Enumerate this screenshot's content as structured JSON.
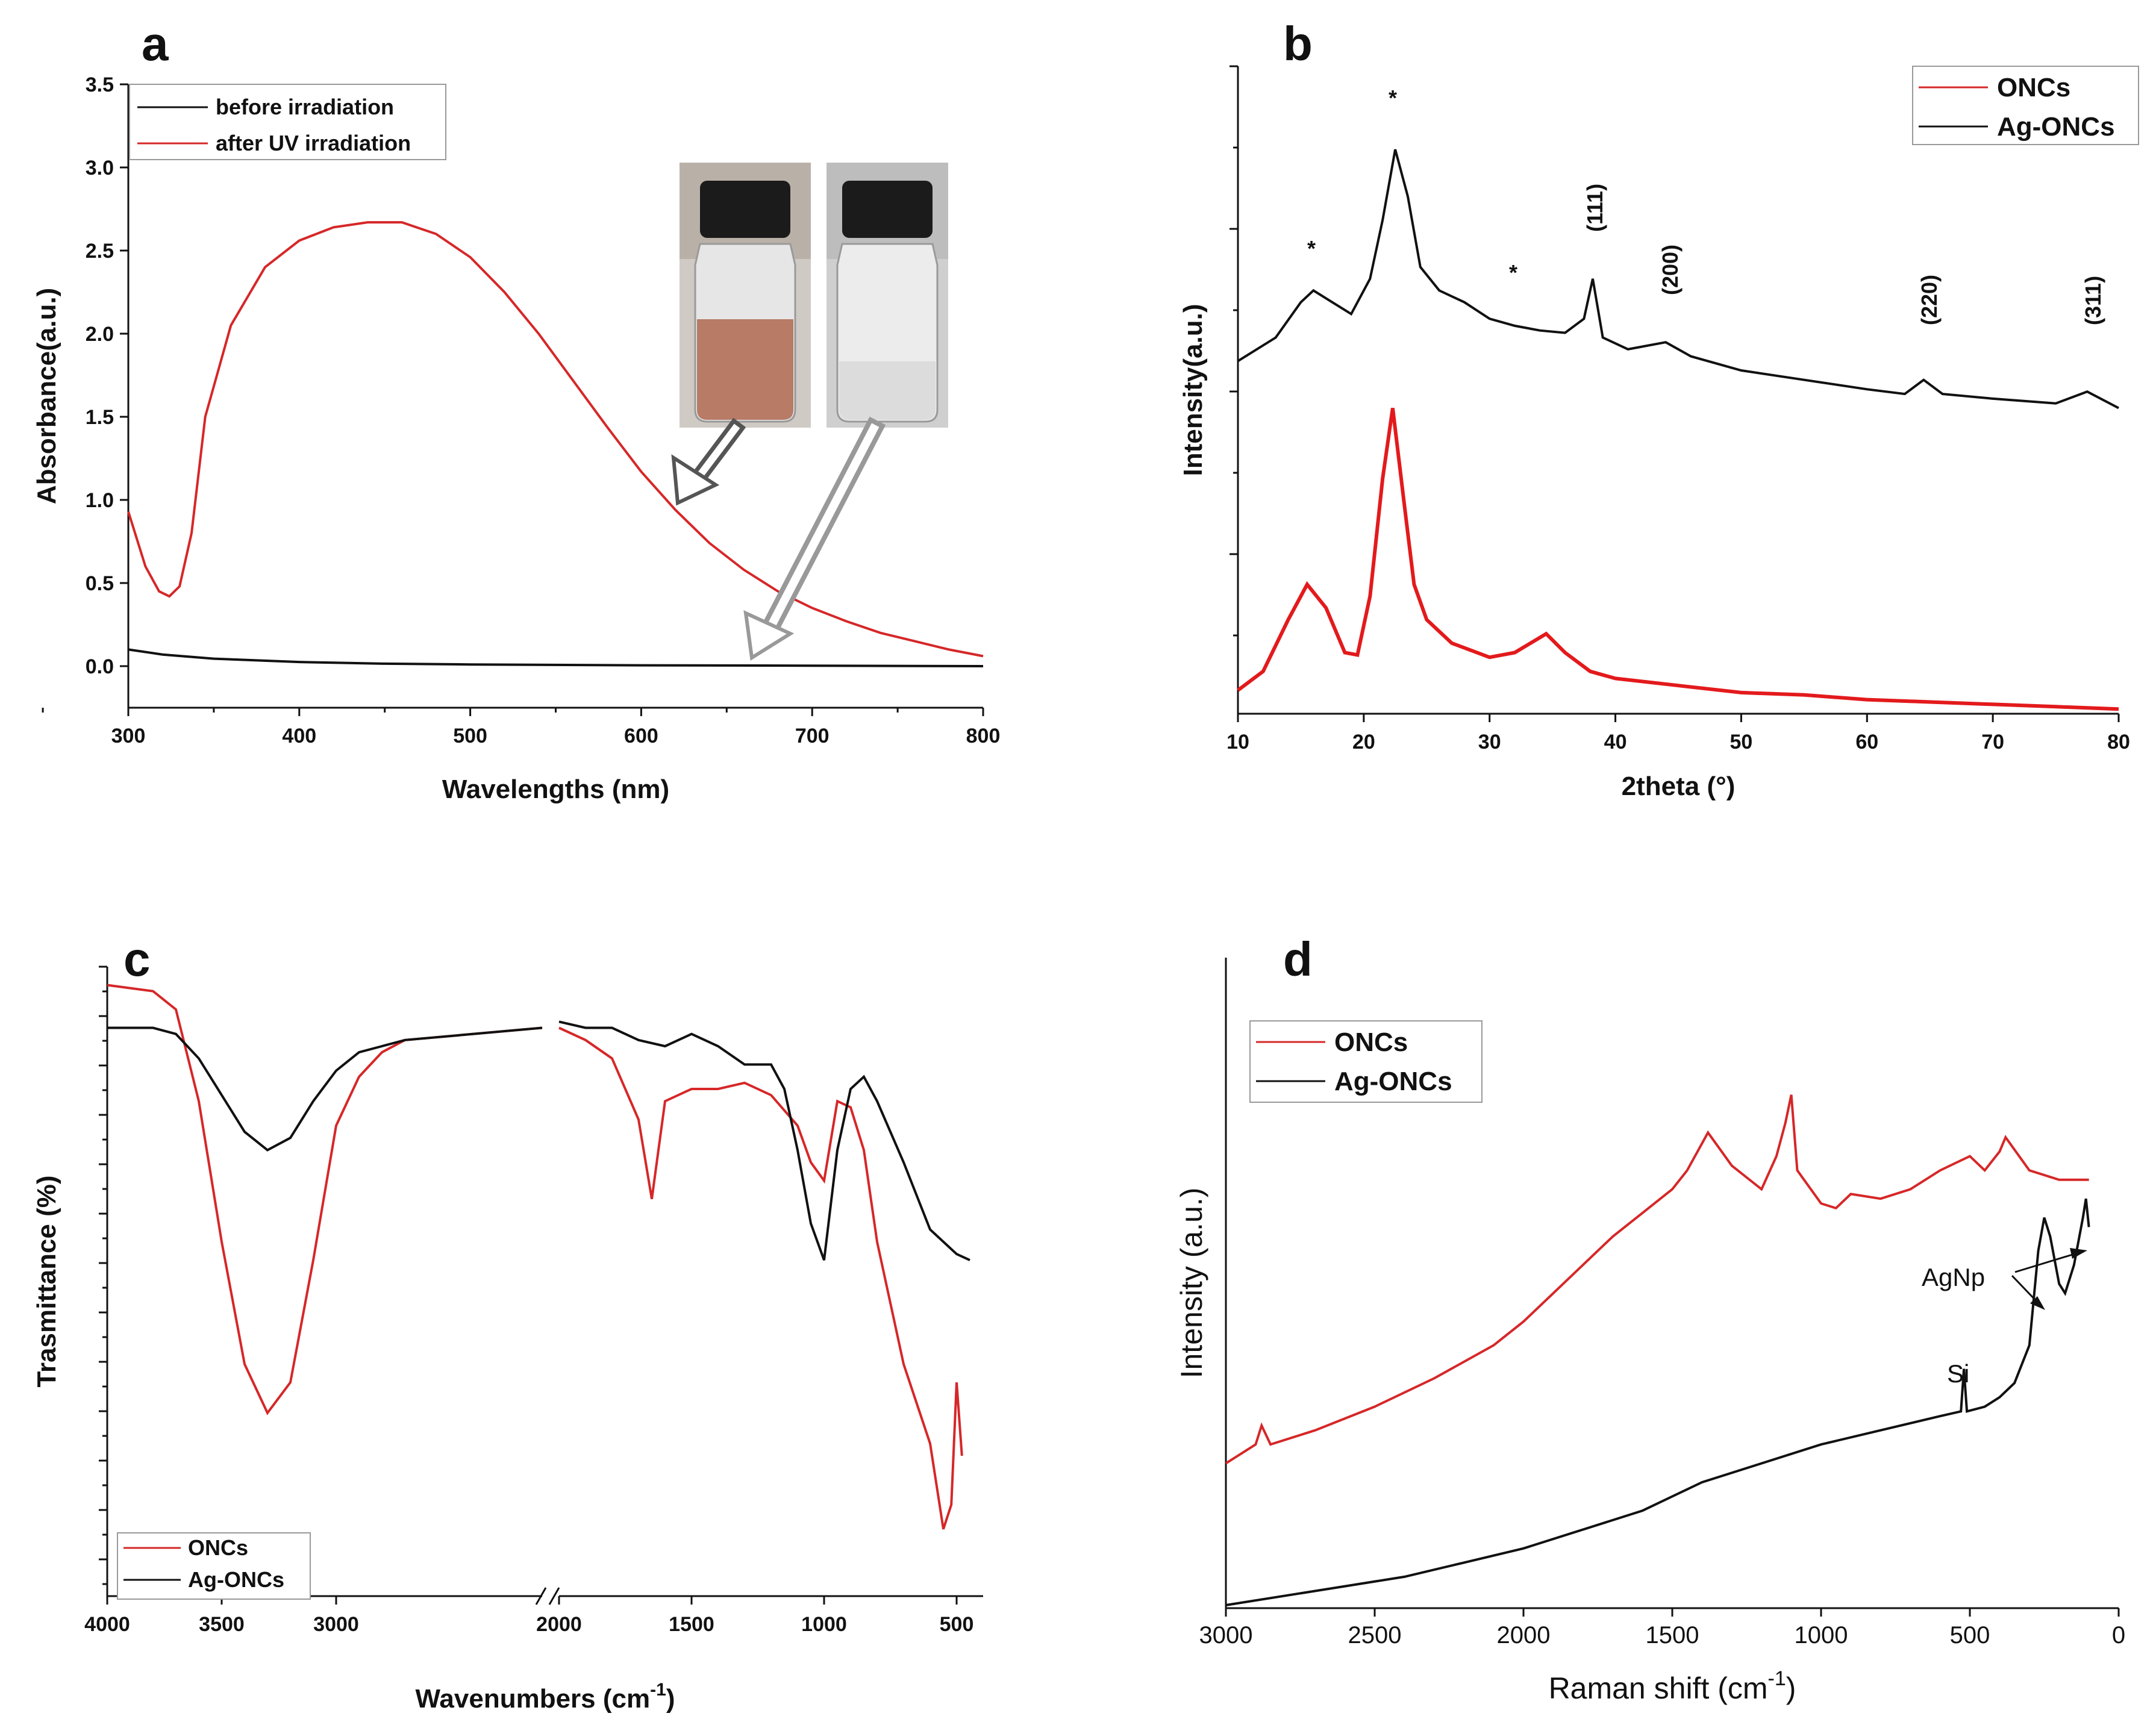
{
  "chart_data": [
    {
      "panel": "a",
      "type": "line",
      "xlabel": "Wavelengths (nm)",
      "ylabel": "Absorbance(a.u.)",
      "xlim": [
        300,
        800
      ],
      "ylim": [
        -0.25,
        3.5
      ],
      "xticks": [
        "300",
        "400",
        "500",
        "600",
        "700",
        "800"
      ],
      "yticks": [
        "0.0",
        "0.5",
        "1.0",
        "1.5",
        "2.0",
        "2.5",
        "3.0",
        "3.5"
      ],
      "legend_position": "top-left",
      "series": [
        {
          "name": "before irradiation",
          "color": "#111111",
          "x": [
            300,
            320,
            350,
            400,
            450,
            500,
            600,
            700,
            800
          ],
          "y": [
            0.1,
            0.07,
            0.045,
            0.025,
            0.015,
            0.01,
            0.005,
            0.003,
            0.0
          ]
        },
        {
          "name": "after UV irradiation",
          "color": "#d62728",
          "x": [
            300,
            310,
            318,
            324,
            330,
            337,
            345,
            360,
            380,
            400,
            420,
            440,
            460,
            480,
            500,
            520,
            540,
            560,
            580,
            600,
            620,
            640,
            660,
            680,
            700,
            720,
            740,
            760,
            780,
            800
          ],
          "y": [
            0.93,
            0.6,
            0.45,
            0.42,
            0.48,
            0.8,
            1.5,
            2.05,
            2.4,
            2.56,
            2.64,
            2.67,
            2.67,
            2.6,
            2.46,
            2.25,
            2.0,
            1.72,
            1.44,
            1.17,
            0.94,
            0.74,
            0.58,
            0.45,
            0.35,
            0.27,
            0.2,
            0.15,
            0.1,
            0.06
          ]
        }
      ]
    },
    {
      "panel": "b",
      "type": "line",
      "xlabel": "2theta (°)",
      "ylabel": "Intensity(a.u.)",
      "xlim": [
        10,
        80
      ],
      "xticks": [
        "10",
        "20",
        "30",
        "40",
        "50",
        "60",
        "70",
        "80"
      ],
      "legend_position": "top-right",
      "annotations": [
        "*",
        "*",
        "*",
        "(111)",
        "(200)",
        "(220)",
        "(311)"
      ],
      "series": [
        {
          "name": "ONCs",
          "color": "#e31a1c",
          "x": [
            10,
            12,
            14,
            15.5,
            17,
            18.5,
            19.5,
            20.5,
            21.5,
            22.3,
            23.2,
            24,
            25,
            27,
            30,
            32,
            34.5,
            36,
            38,
            40,
            45,
            50,
            55,
            60,
            65,
            70,
            75,
            80
          ],
          "y": [
            0.1,
            0.18,
            0.4,
            0.55,
            0.45,
            0.26,
            0.25,
            0.5,
            1.0,
            1.3,
            0.9,
            0.55,
            0.4,
            0.3,
            0.24,
            0.26,
            0.34,
            0.26,
            0.18,
            0.15,
            0.12,
            0.09,
            0.08,
            0.06,
            0.05,
            0.04,
            0.03,
            0.02
          ]
        },
        {
          "name": "Ag-ONCs",
          "color": "#111111",
          "x": [
            10,
            13,
            15,
            16,
            17.5,
            19,
            20.5,
            21.5,
            22.5,
            23.5,
            24.5,
            26,
            28,
            30,
            32,
            34,
            36,
            37.5,
            38.2,
            39,
            41,
            44,
            46,
            50,
            55,
            60,
            63,
            64.5,
            66,
            70,
            75,
            77.5,
            80
          ],
          "y": [
            1.5,
            1.6,
            1.75,
            1.8,
            1.75,
            1.7,
            1.85,
            2.1,
            2.4,
            2.2,
            1.9,
            1.8,
            1.75,
            1.68,
            1.65,
            1.63,
            1.62,
            1.68,
            1.85,
            1.6,
            1.55,
            1.58,
            1.52,
            1.46,
            1.42,
            1.38,
            1.36,
            1.42,
            1.36,
            1.34,
            1.32,
            1.37,
            1.3
          ]
        }
      ]
    },
    {
      "panel": "c",
      "type": "line",
      "xlabel": "Wavenumbers (cm",
      "xlabel_sup": "-1",
      "xlabel_end": ")",
      "ylabel": "Trasmittance (%)",
      "xticks": [
        "4000",
        "3500",
        "3000",
        "2000",
        "1500",
        "1000",
        "500"
      ],
      "axis_break": "broken x-axis between 2100 and 2000",
      "legend_position": "bottom-left",
      "series": [
        {
          "name": "ONCs",
          "color": "#d62728",
          "x": [
            4000,
            3800,
            3700,
            3600,
            3500,
            3400,
            3300,
            3200,
            3100,
            3000,
            2900,
            2800,
            2700,
            2100,
            2000,
            1900,
            1800,
            1700,
            1650,
            1600,
            1500,
            1400,
            1300,
            1200,
            1100,
            1050,
            1000,
            950,
            900,
            850,
            800,
            700,
            600,
            550,
            520,
            500,
            480
          ],
          "y": [
            97,
            96,
            93,
            78,
            55,
            35,
            27,
            32,
            52,
            74,
            82,
            86,
            88,
            90,
            90,
            88,
            85,
            75,
            62,
            78,
            80,
            80,
            81,
            79,
            74,
            68,
            65,
            78,
            77,
            70,
            55,
            35,
            22,
            8,
            12,
            32,
            20
          ]
        },
        {
          "name": "Ag-ONCs",
          "color": "#111111",
          "x": [
            4000,
            3800,
            3700,
            3600,
            3500,
            3400,
            3300,
            3200,
            3100,
            3000,
            2900,
            2800,
            2700,
            2100,
            2000,
            1900,
            1800,
            1700,
            1600,
            1500,
            1400,
            1300,
            1200,
            1150,
            1100,
            1050,
            1000,
            950,
            900,
            850,
            800,
            700,
            600,
            500,
            450
          ],
          "y": [
            90,
            90,
            89,
            85,
            79,
            73,
            70,
            72,
            78,
            83,
            86,
            87,
            88,
            90,
            91,
            90,
            90,
            88,
            87,
            89,
            87,
            84,
            84,
            80,
            70,
            58,
            52,
            70,
            80,
            82,
            78,
            68,
            57,
            53,
            52
          ]
        }
      ]
    },
    {
      "panel": "d",
      "type": "line",
      "xlabel": "Raman shift (cm",
      "xlabel_sup": "-1",
      "xlabel_end": ")",
      "ylabel": "Intensity (a.u.)",
      "xlim": [
        3000,
        0
      ],
      "xticks": [
        "3000",
        "2500",
        "2000",
        "1500",
        "1000",
        "500",
        "0"
      ],
      "legend_position": "top-left",
      "annotations": [
        "AgNp",
        "Si"
      ],
      "series": [
        {
          "name": "ONCs",
          "color": "#d62728",
          "x": [
            3000,
            2900,
            2880,
            2850,
            2700,
            2500,
            2300,
            2100,
            2000,
            1900,
            1800,
            1700,
            1600,
            1500,
            1450,
            1380,
            1300,
            1200,
            1150,
            1120,
            1100,
            1080,
            1000,
            950,
            900,
            800,
            700,
            600,
            500,
            450,
            400,
            380,
            300,
            200,
            100
          ],
          "y": [
            0.3,
            0.34,
            0.38,
            0.34,
            0.37,
            0.42,
            0.48,
            0.55,
            0.6,
            0.66,
            0.72,
            0.78,
            0.83,
            0.88,
            0.92,
            1.0,
            0.93,
            0.88,
            0.95,
            1.02,
            1.08,
            0.92,
            0.85,
            0.84,
            0.87,
            0.86,
            0.88,
            0.92,
            0.95,
            0.92,
            0.96,
            0.99,
            0.92,
            0.9,
            0.9
          ]
        },
        {
          "name": "Ag-ONCs",
          "color": "#111111",
          "x": [
            3000,
            2800,
            2600,
            2400,
            2200,
            2000,
            1800,
            1600,
            1500,
            1400,
            1200,
            1000,
            800,
            600,
            530,
            520,
            510,
            450,
            400,
            350,
            300,
            270,
            250,
            230,
            200,
            180,
            150,
            120,
            110,
            100
          ],
          "y": [
            0.0,
            0.02,
            0.04,
            0.06,
            0.09,
            0.12,
            0.16,
            0.2,
            0.23,
            0.26,
            0.3,
            0.34,
            0.37,
            0.4,
            0.41,
            0.5,
            0.41,
            0.42,
            0.44,
            0.47,
            0.55,
            0.75,
            0.82,
            0.78,
            0.68,
            0.66,
            0.72,
            0.82,
            0.86,
            0.8
          ]
        }
      ]
    }
  ],
  "panels": {
    "a": {
      "letter": "a",
      "legend": [
        "before irradiation",
        "after UV irradiation"
      ]
    },
    "b": {
      "letter": "b",
      "legend": [
        "ONCs",
        "Ag-ONCs"
      ],
      "peaks": [
        "*",
        "*",
        "*",
        "(111)",
        "(200)",
        "(220)",
        "(311)"
      ]
    },
    "c": {
      "letter": "c",
      "legend": [
        "ONCs",
        "Ag-ONCs"
      ]
    },
    "d": {
      "letter": "d",
      "legend": [
        "ONCs",
        "Ag-ONCs"
      ],
      "agnp_label": "AgNp",
      "si_label": "Si"
    }
  },
  "colors": {
    "red": "#d62728",
    "black": "#111111",
    "axis": "#111111"
  }
}
